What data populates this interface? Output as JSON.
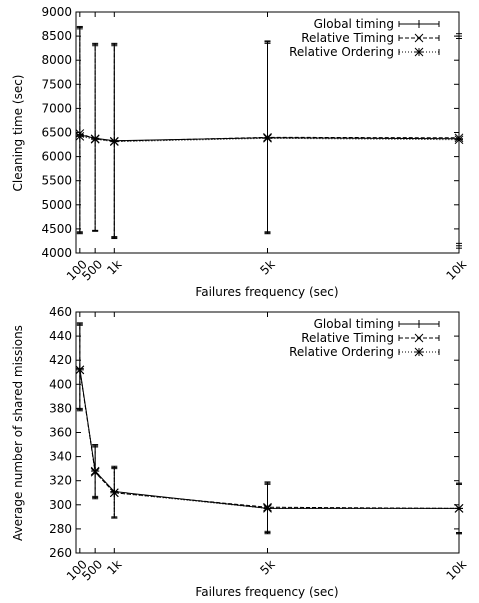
{
  "chart_data": [
    {
      "type": "line",
      "title": "",
      "xlabel": "Failures frequency (sec)",
      "ylabel": "Cleaning time (sec)",
      "xlim": [
        0,
        10000
      ],
      "ylim": [
        4000,
        9000
      ],
      "x_ticks": [
        {
          "value": 100,
          "label": "100"
        },
        {
          "value": 500,
          "label": "500"
        },
        {
          "value": 1000,
          "label": "1k"
        },
        {
          "value": 5000,
          "label": "5k"
        },
        {
          "value": 10000,
          "label": "10k"
        }
      ],
      "y_ticks": [
        4000,
        4500,
        5000,
        5500,
        6000,
        6500,
        7000,
        7500,
        8000,
        8500,
        9000
      ],
      "legend_position": "top-right",
      "series": [
        {
          "name": "Global timing",
          "marker": "plus",
          "dash": "",
          "x": [
            100,
            500,
            1000,
            5000,
            10000
          ],
          "y": [
            6450,
            6380,
            6330,
            6390,
            6370
          ],
          "err_low": [
            4400,
            4450,
            4300,
            4400,
            4100
          ],
          "err_high": [
            8700,
            8350,
            8350,
            8400,
            8550
          ]
        },
        {
          "name": "Relative Timing",
          "marker": "x",
          "dash": "4,2",
          "x": [
            100,
            500,
            1000,
            5000,
            10000
          ],
          "y": [
            6480,
            6370,
            6320,
            6400,
            6390
          ],
          "err_low": [
            4420,
            4460,
            4320,
            4420,
            4150
          ],
          "err_high": [
            8680,
            8330,
            8330,
            8380,
            8500
          ]
        },
        {
          "name": "Relative Ordering",
          "marker": "star",
          "dash": "1,2",
          "x": [
            100,
            500,
            1000,
            5000,
            10000
          ],
          "y": [
            6420,
            6360,
            6310,
            6380,
            6350
          ],
          "err_low": [
            4440,
            4470,
            4340,
            4440,
            4200
          ],
          "err_high": [
            8650,
            8300,
            8300,
            8350,
            8450
          ]
        }
      ]
    },
    {
      "type": "line",
      "title": "",
      "xlabel": "Failures frequency (sec)",
      "ylabel": "Average number of shared missions",
      "xlim": [
        0,
        10000
      ],
      "ylim": [
        260,
        460
      ],
      "x_ticks": [
        {
          "value": 100,
          "label": "100"
        },
        {
          "value": 500,
          "label": "500"
        },
        {
          "value": 1000,
          "label": "1k"
        },
        {
          "value": 5000,
          "label": "5k"
        },
        {
          "value": 10000,
          "label": "10k"
        }
      ],
      "y_ticks": [
        260,
        280,
        300,
        320,
        340,
        360,
        380,
        400,
        420,
        440,
        460
      ],
      "legend_position": "top-right",
      "series": [
        {
          "name": "Global timing",
          "marker": "plus",
          "dash": "",
          "x": [
            100,
            500,
            1000,
            5000,
            10000
          ],
          "y": [
            413,
            328,
            311,
            297,
            297
          ],
          "err_low": [
            378,
            305,
            289,
            276,
            276
          ],
          "err_high": [
            451,
            350,
            332,
            319,
            318
          ]
        },
        {
          "name": "Relative Timing",
          "marker": "x",
          "dash": "4,2",
          "x": [
            100,
            500,
            1000,
            5000,
            10000
          ],
          "y": [
            412,
            327,
            310,
            298,
            297
          ],
          "err_low": [
            380,
            307,
            290,
            278,
            277
          ],
          "err_high": [
            449,
            348,
            330,
            317,
            317
          ]
        },
        {
          "name": "Relative Ordering",
          "marker": "star",
          "dash": "1,2",
          "x": [
            100,
            500,
            1000,
            5000,
            10000
          ],
          "y": [
            412,
            328,
            310,
            297,
            297
          ],
          "err_low": [
            379,
            306,
            289,
            277,
            276
          ],
          "err_high": [
            450,
            349,
            331,
            318,
            317
          ]
        }
      ]
    }
  ]
}
